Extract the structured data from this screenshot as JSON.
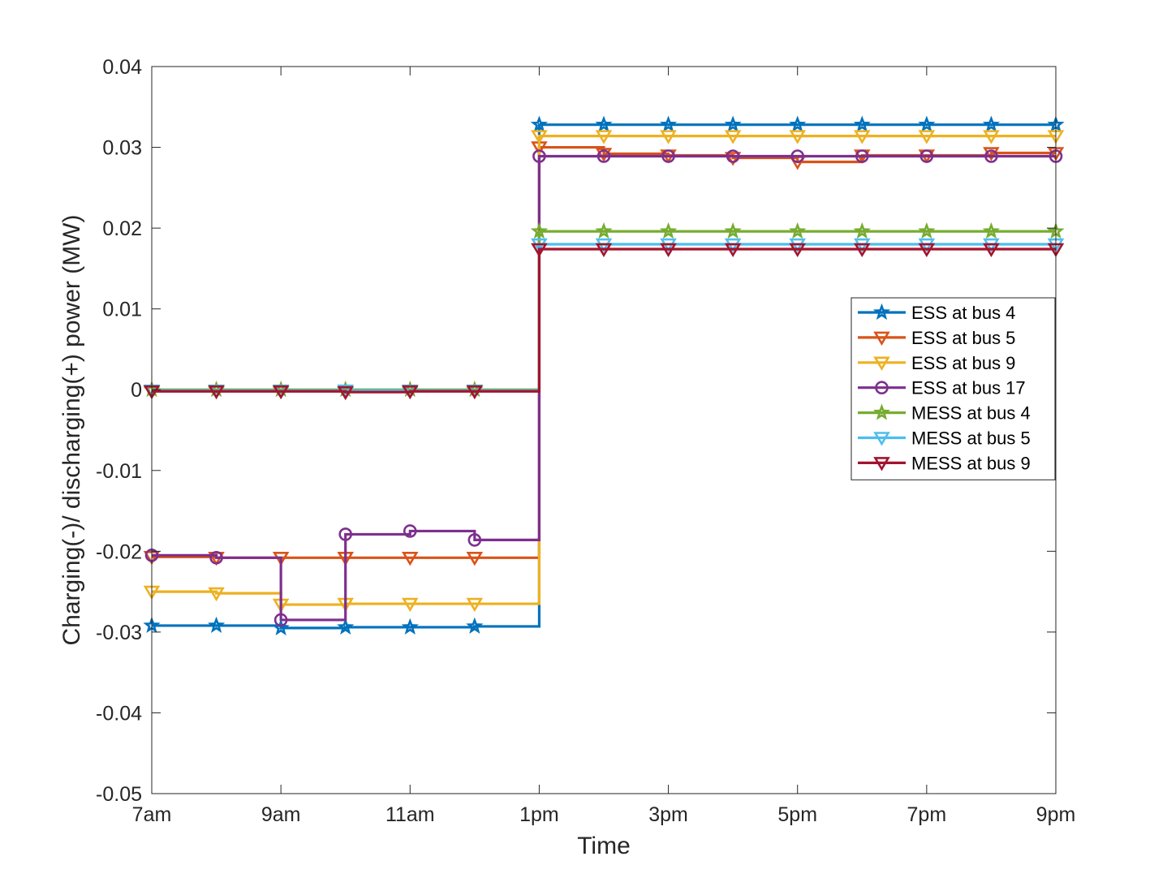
{
  "chart_data": {
    "type": "line",
    "step": true,
    "xlabel": "Time",
    "ylabel": "Charging(-)/ discharging(+) power (MW)",
    "xlim": [
      0,
      14
    ],
    "ylim": [
      -0.05,
      0.04
    ],
    "x_tick_labels": [
      "7am",
      "9am",
      "11am",
      "1pm",
      "3pm",
      "5pm",
      "7pm",
      "9pm"
    ],
    "x_tick_values": [
      0,
      2,
      4,
      6,
      8,
      10,
      12,
      14
    ],
    "y_ticks": [
      -0.05,
      -0.04,
      -0.03,
      -0.02,
      -0.01,
      0,
      0.01,
      0.02,
      0.03,
      0.04
    ],
    "y_tick_labels": [
      "-0.05",
      "-0.04",
      "-0.03",
      "-0.02",
      "-0.01",
      "0",
      "0.01",
      "0.02",
      "0.03",
      "0.04"
    ],
    "grid": false,
    "box": true,
    "legend_position": "right",
    "x": [
      0,
      1,
      2,
      3,
      4,
      5,
      6,
      7,
      8,
      9,
      10,
      11,
      12,
      13,
      14
    ],
    "series": [
      {
        "name": "ESS at bus 4",
        "color": "#0072BD",
        "marker": "star",
        "values": [
          -0.0292,
          -0.0292,
          -0.0295,
          -0.0294,
          -0.0294,
          -0.0293,
          0.0328,
          0.0328,
          0.0328,
          0.0328,
          0.0328,
          0.0328,
          0.0328,
          0.0328,
          0.0328
        ]
      },
      {
        "name": "ESS at bus 5",
        "color": "#D95319",
        "marker": "triangle-down",
        "values": [
          -0.0207,
          -0.0208,
          -0.0208,
          -0.0208,
          -0.0208,
          -0.0208,
          0.03,
          0.0292,
          0.029,
          0.0287,
          0.0282,
          0.029,
          0.029,
          0.0293,
          0.0293
        ]
      },
      {
        "name": "ESS at bus 9",
        "color": "#EDB120",
        "marker": "triangle-down",
        "values": [
          -0.025,
          -0.0252,
          -0.0266,
          -0.0265,
          -0.0265,
          -0.0265,
          0.0314,
          0.0314,
          0.0314,
          0.0314,
          0.0314,
          0.0314,
          0.0314,
          0.0314,
          0.0314
        ]
      },
      {
        "name": "ESS at bus 17",
        "color": "#7E2F8E",
        "marker": "circle",
        "values": [
          -0.0205,
          -0.0208,
          -0.0285,
          -0.0179,
          -0.0175,
          -0.0186,
          0.0289,
          0.0289,
          0.0289,
          0.0289,
          0.0289,
          0.0289,
          0.0289,
          0.0289,
          0.0289
        ]
      },
      {
        "name": "MESS at bus 4",
        "color": "#77AC30",
        "marker": "star",
        "values": [
          0,
          0,
          0,
          0,
          0,
          0,
          0.0196,
          0.0196,
          0.0196,
          0.0196,
          0.0196,
          0.0196,
          0.0196,
          0.0196,
          0.0196
        ]
      },
      {
        "name": "MESS at bus 5",
        "color": "#4DBEEE",
        "marker": "triangle-down",
        "values": [
          -0.0001,
          -0.0001,
          -0.0001,
          -0.0001,
          -0.0001,
          -0.0001,
          0.018,
          0.018,
          0.018,
          0.018,
          0.018,
          0.018,
          0.018,
          0.018,
          0.018
        ]
      },
      {
        "name": "MESS at bus 9",
        "color": "#A2142F",
        "marker": "triangle-down",
        "values": [
          -0.0002,
          -0.0002,
          -0.0002,
          -0.0003,
          -0.0002,
          -0.0002,
          0.0174,
          0.0174,
          0.0174,
          0.0174,
          0.0174,
          0.0174,
          0.0174,
          0.0174,
          0.0174
        ]
      }
    ]
  }
}
